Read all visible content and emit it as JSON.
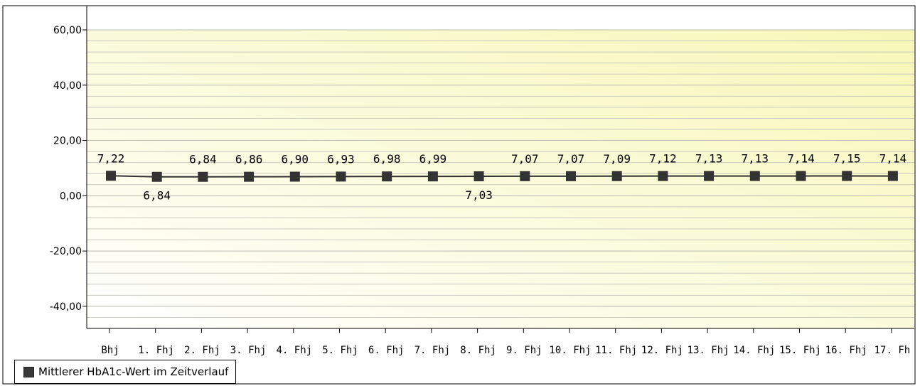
{
  "chart_data": {
    "type": "line",
    "categories": [
      "Bhj",
      "1. Fhj",
      "2. Fhj",
      "3. Fhj",
      "4. Fhj",
      "5. Fhj",
      "6. Fhj",
      "7. Fhj",
      "8. Fhj",
      "9. Fhj",
      "10. Fhj",
      "11. Fhj",
      "12. Fhj",
      "13. Fhj",
      "14. Fhj",
      "15. Fhj",
      "16. Fhj",
      "17. Fh"
    ],
    "series": [
      {
        "name": "Mittlerer HbA1c-Wert im Zeitverlauf",
        "values": [
          7.22,
          6.84,
          6.84,
          6.86,
          6.9,
          6.93,
          6.98,
          6.99,
          7.03,
          7.07,
          7.07,
          7.09,
          7.12,
          7.13,
          7.13,
          7.14,
          7.15,
          7.14
        ],
        "labels": [
          "7,22",
          "6,84",
          "6,84",
          "6,86",
          "6,90",
          "6,93",
          "6,98",
          "6,99",
          "7,03",
          "7,07",
          "7,07",
          "7,09",
          "7,12",
          "7,13",
          "7,13",
          "7,14",
          "7,15",
          "7,14"
        ],
        "label_position": [
          "above",
          "below",
          "above",
          "above",
          "above",
          "above",
          "above",
          "above",
          "below",
          "above",
          "above",
          "above",
          "above",
          "above",
          "above",
          "above",
          "above",
          "above"
        ],
        "color": "#333333"
      }
    ],
    "yticks": [
      60,
      40,
      20,
      0,
      -20,
      -40
    ],
    "ytick_labels": [
      "60,00",
      "40,00",
      "20,00",
      "0,00",
      "-20,00",
      "-40,00"
    ],
    "ylim": [
      -48,
      60
    ],
    "xlabel": "",
    "ylabel": "",
    "grid": true,
    "legend": "bottom-left",
    "background_colors": [
      "#ffffff",
      "#f8f8c4"
    ]
  }
}
